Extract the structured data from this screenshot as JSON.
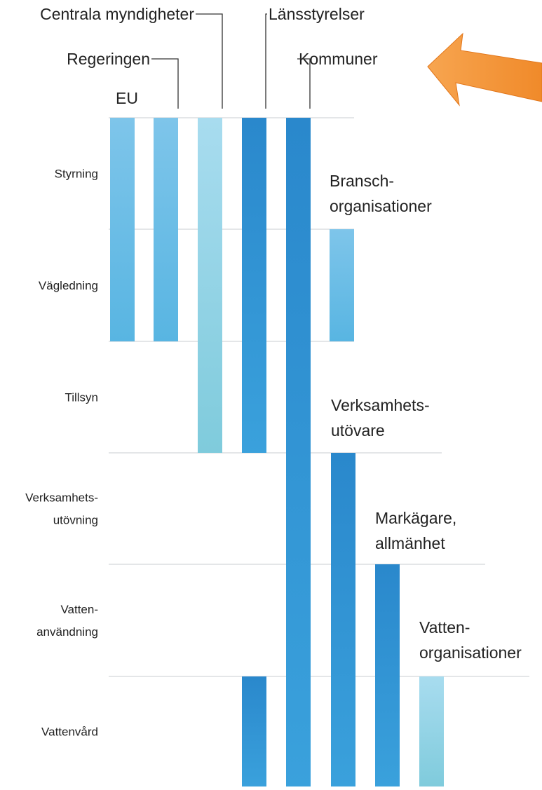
{
  "rows": [
    [
      "Styrning"
    ],
    [
      "Vägledning"
    ],
    [
      "Tillsyn"
    ],
    [
      "Verksamhets-",
      "utövning"
    ],
    [
      "Vatten-",
      "användning"
    ],
    [
      "Vattenvård"
    ]
  ],
  "columns": [
    [
      "EU"
    ],
    [
      "Regeringen"
    ],
    [
      "Centrala myndigheter"
    ],
    [
      "Länsstyrelser"
    ],
    [
      "Kommuner"
    ],
    [
      "Bransch-",
      "organisationer"
    ],
    [
      "Verksamhets-",
      "utövare"
    ],
    [
      "Markägare,",
      "allmänhet"
    ],
    [
      "Vatten-",
      "organisationer"
    ]
  ]
}
